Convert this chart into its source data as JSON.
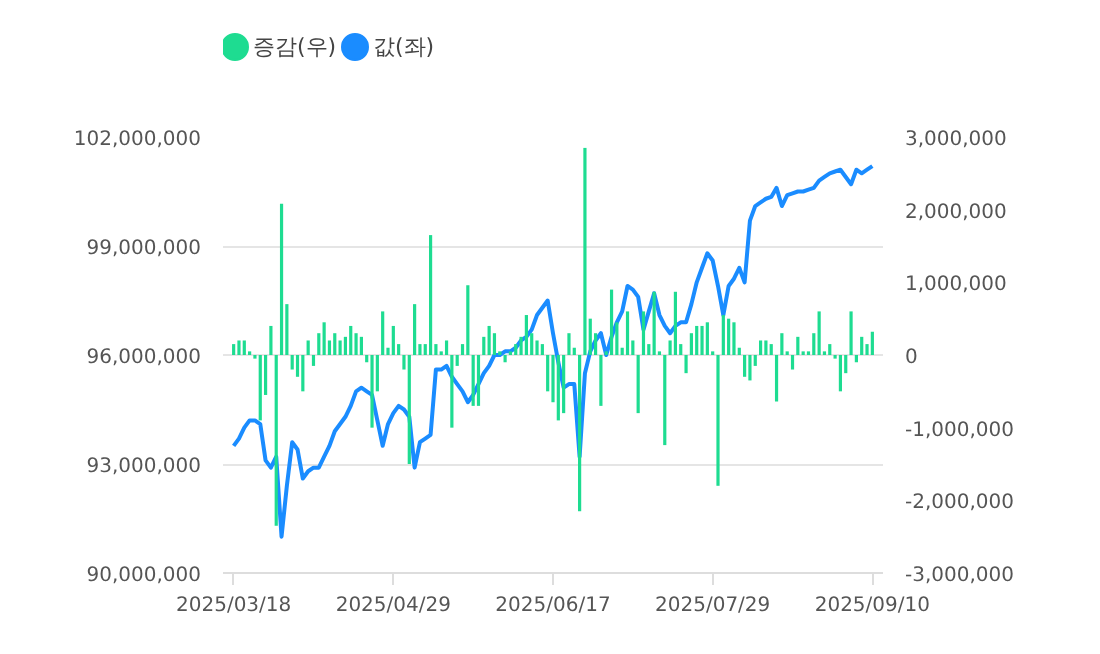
{
  "chart_data": {
    "type": "bar",
    "categories": [
      "2025/03/18",
      null,
      null,
      null,
      null,
      null,
      null,
      null,
      null,
      null,
      null,
      null,
      null,
      null,
      null,
      null,
      null,
      null,
      null,
      null,
      null,
      null,
      null,
      null,
      null,
      null,
      null,
      null,
      null,
      null,
      "2025/04/29",
      null,
      null,
      null,
      null,
      null,
      null,
      null,
      null,
      null,
      null,
      null,
      null,
      null,
      null,
      null,
      null,
      null,
      null,
      null,
      null,
      null,
      null,
      null,
      null,
      null,
      null,
      null,
      null,
      null,
      "2025/06/17",
      null,
      null,
      null,
      null,
      null,
      null,
      null,
      null,
      null,
      null,
      null,
      null,
      null,
      null,
      null,
      null,
      null,
      null,
      null,
      null,
      null,
      null,
      null,
      null,
      null,
      null,
      null,
      null,
      null,
      "2025/07/29",
      null,
      null,
      null,
      null,
      null,
      null,
      null,
      null,
      null,
      null,
      null,
      null,
      null,
      null,
      null,
      null,
      null,
      null,
      null,
      null,
      null,
      null,
      null,
      null,
      null,
      null,
      null,
      null,
      null,
      "2025/09/10"
    ],
    "series": [
      {
        "name": "증감(우)",
        "axis": "y2",
        "color": "#1edc91",
        "values": [
          150000,
          200000,
          200000,
          50000,
          -50000,
          -900000,
          -550000,
          400000,
          -2350000,
          2080000,
          700000,
          -200000,
          -300000,
          -500000,
          200000,
          -150000,
          300000,
          450000,
          200000,
          300000,
          200000,
          250000,
          400000,
          300000,
          250000,
          -100000,
          -1000000,
          -500000,
          600000,
          100000,
          400000,
          150000,
          -200000,
          -1500000,
          700000,
          150000,
          150000,
          1650000,
          150000,
          50000,
          200000,
          -1000000,
          -150000,
          150000,
          960000,
          -700000,
          -700000,
          250000,
          400000,
          300000,
          50000,
          -100000,
          50000,
          150000,
          250000,
          550000,
          300000,
          200000,
          150000,
          -500000,
          -650000,
          -900000,
          -800000,
          300000,
          100000,
          -2150000,
          2850000,
          500000,
          300000,
          -700000,
          50000,
          900000,
          450000,
          100000,
          600000,
          200000,
          -800000,
          600000,
          150000,
          870000,
          50000,
          -1240000,
          200000,
          870000,
          150000,
          -250000,
          300000,
          400000,
          400000,
          450000,
          50000,
          -1800000,
          550000,
          500000,
          450000,
          100000,
          -300000,
          -350000,
          -150000,
          200000,
          200000,
          150000,
          -640000,
          300000,
          50000,
          -200000,
          250000,
          50000,
          50000,
          300000,
          600000,
          50000,
          150000,
          -50000,
          -500000,
          -250000,
          600000,
          -100000,
          250000,
          150000,
          320000
        ]
      },
      {
        "name": "값(좌)",
        "type": "line",
        "color": "#1a8cff",
        "values": [
          93500000,
          93700000,
          94000000,
          94200000,
          94200000,
          94100000,
          93100000,
          92900000,
          93200000,
          91000000,
          92400000,
          93600000,
          93400000,
          92600000,
          92800000,
          92900000,
          92900000,
          93200000,
          93500000,
          93900000,
          94100000,
          94300000,
          94600000,
          95000000,
          95100000,
          95000000,
          94900000,
          94200000,
          93500000,
          94100000,
          94400000,
          94600000,
          94500000,
          94300000,
          92900000,
          93600000,
          93700000,
          93800000,
          95600000,
          95600000,
          95700000,
          95400000,
          95200000,
          95000000,
          94700000,
          94900000,
          95200000,
          95500000,
          95700000,
          96000000,
          96000000,
          96100000,
          96100000,
          96200000,
          96400000,
          96500000,
          96700000,
          97100000,
          97300000,
          97500000,
          96600000,
          95800000,
          95100000,
          95200000,
          95200000,
          93200000,
          95500000,
          96100000,
          96400000,
          96600000,
          96000000,
          96500000,
          96900000,
          97200000,
          97900000,
          97800000,
          97600000,
          96700000,
          97200000,
          97700000,
          97100000,
          96800000,
          96600000,
          96800000,
          96900000,
          96900000,
          97400000,
          98000000,
          98400000,
          98800000,
          98600000,
          97900000,
          97100000,
          97900000,
          98100000,
          98400000,
          98000000,
          99700000,
          100100000,
          100200000,
          100300000,
          100350000,
          100600000,
          100100000,
          100400000,
          100450000,
          100500000,
          100500000,
          100550000,
          100600000,
          100800000,
          100900000,
          101000000,
          101050000,
          101100000,
          100900000,
          100700000,
          101100000,
          101000000,
          101100000,
          101200000
        ]
      }
    ],
    "ylim": [
      90000000,
      102000000
    ],
    "yticks": [
      {
        "value": 90000000,
        "label": "90,000,000"
      },
      {
        "value": 93000000,
        "label": "93,000,000"
      },
      {
        "value": 96000000,
        "label": "96,000,000"
      },
      {
        "value": 99000000,
        "label": "99,000,000"
      },
      {
        "value": 102000000,
        "label": "102,000,000"
      }
    ],
    "y2lim": [
      -3000000,
      3000000
    ],
    "y2ticks": [
      {
        "value": -3000000,
        "label": "-3,000,000"
      },
      {
        "value": -2000000,
        "label": "-2,000,000"
      },
      {
        "value": -1000000,
        "label": "-1,000,000"
      },
      0,
      {
        "value": 1000000,
        "label": "1,000,000"
      },
      {
        "value": 2000000,
        "label": "2,000,000"
      },
      {
        "value": 3000000,
        "label": "3,000,000"
      }
    ],
    "grid": "y",
    "legend": "top left",
    "marker": "none",
    "line_style": "solid"
  }
}
